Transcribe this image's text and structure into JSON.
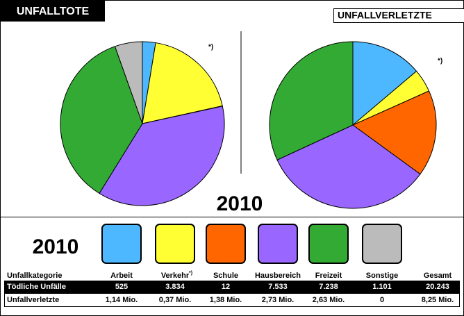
{
  "chart_data": [
    {
      "type": "pie",
      "title": "UNFALLTOTE",
      "row_label": "Tödliche Unfälle",
      "categories": [
        "Arbeit",
        "Verkehr",
        "Schule",
        "Hausbereich",
        "Freizeit",
        "Sonstige"
      ],
      "values": [
        525,
        3834,
        12,
        7533,
        7238,
        1101
      ],
      "value_labels": [
        "525",
        "3.834",
        "12",
        "7.533",
        "7.238",
        "1.101"
      ],
      "colors": [
        "#4db8ff",
        "#ffff33",
        "#ff6600",
        "#9966ff",
        "#33aa33",
        "#bbbbbb"
      ],
      "total": 20243,
      "total_label": "20.243"
    },
    {
      "type": "pie",
      "title": "UNFALLVERLETZTE",
      "row_label": "Unfallverletzte",
      "categories": [
        "Arbeit",
        "Verkehr",
        "Schule",
        "Hausbereich",
        "Freizeit",
        "Sonstige"
      ],
      "values": [
        1.14,
        0.37,
        1.38,
        2.73,
        2.63,
        0
      ],
      "value_labels": [
        "1,14 Mio.",
        "0,37 Mio.",
        "1,38 Mio.",
        "2,73 Mio.",
        "2,63 Mio.",
        "0"
      ],
      "colors": [
        "#4db8ff",
        "#ffff33",
        "#ff6600",
        "#9966ff",
        "#33aa33",
        "#bbbbbb"
      ],
      "total": 8.25,
      "total_label": "8,25 Mio."
    }
  ],
  "year": "2010",
  "table": {
    "header": "Unfallkategorie",
    "total_header": "Gesamt",
    "footnote_marker": "*)"
  }
}
